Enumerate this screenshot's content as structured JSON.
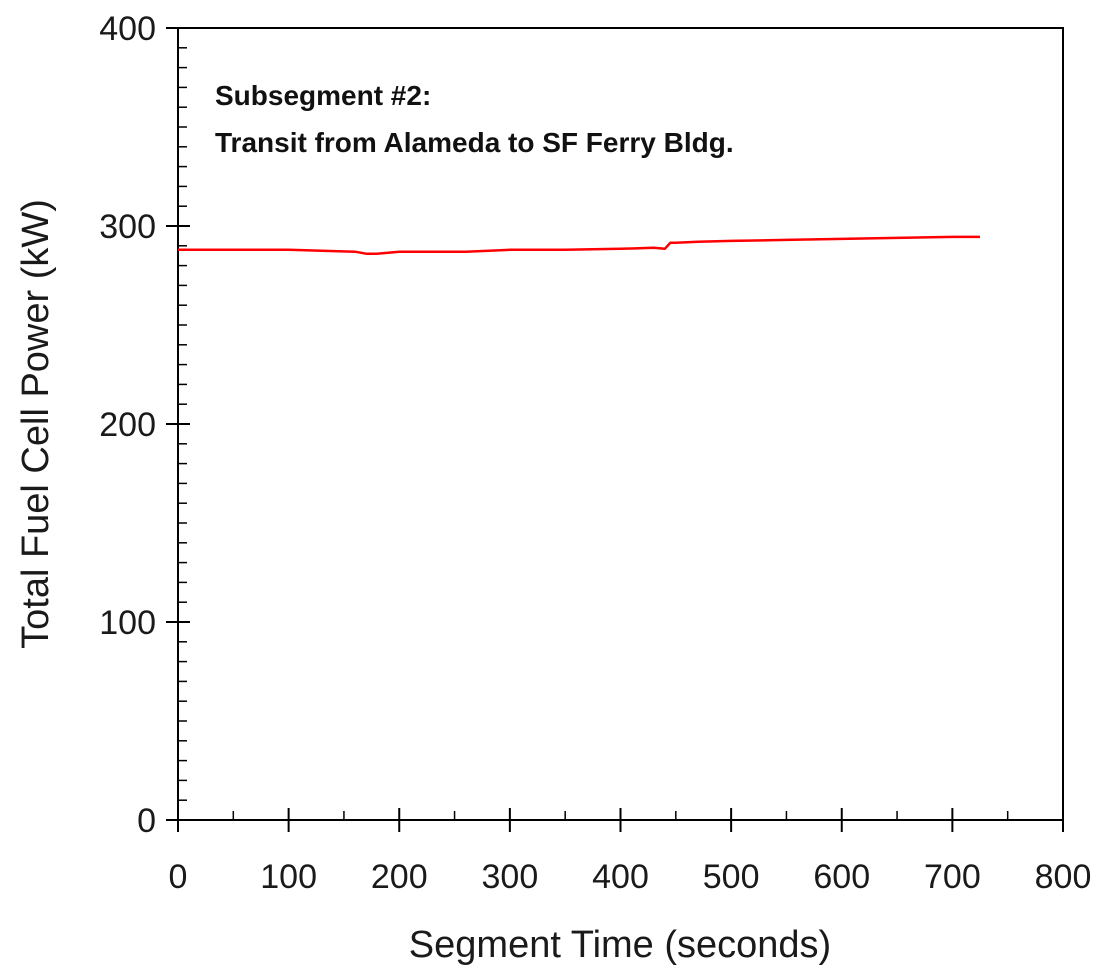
{
  "chart_data": {
    "type": "line",
    "title": "",
    "xlabel": "Segment Time (seconds)",
    "ylabel": "Total Fuel Cell Power (kW)",
    "xlim": [
      0,
      800
    ],
    "ylim": [
      0,
      400
    ],
    "xticks": [
      "0",
      "100",
      "200",
      "300",
      "400",
      "500",
      "600",
      "700",
      "800"
    ],
    "yticks": [
      "0",
      "100",
      "200",
      "300",
      "400"
    ],
    "grid": false,
    "legend": "none",
    "annotation": {
      "line1": "Subsegment #2:",
      "line2": "Transit from Alameda to SF Ferry Bldg."
    },
    "series": [
      {
        "color": "#ff0000",
        "x": [
          0,
          20,
          50,
          80,
          100,
          130,
          160,
          170,
          180,
          200,
          230,
          260,
          300,
          350,
          400,
          430,
          440,
          445,
          450,
          470,
          500,
          550,
          600,
          650,
          700,
          725
        ],
        "y": [
          288,
          288,
          288,
          288,
          288,
          287.5,
          287,
          286,
          286,
          287,
          287,
          287,
          288,
          288,
          288.5,
          289,
          288.5,
          291.5,
          291.5,
          292,
          292.5,
          293,
          293.5,
          294,
          294.5,
          294.5
        ]
      }
    ]
  }
}
